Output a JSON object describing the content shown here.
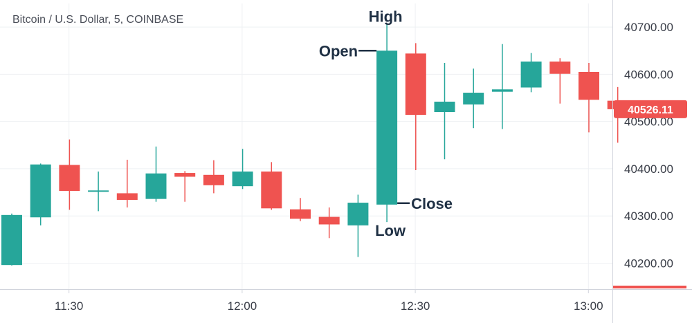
{
  "chart_data": {
    "type": "candlestick",
    "title": "Bitcoin / U.S. Dollar, 5, COINBASE",
    "xlabel": "",
    "ylabel": "",
    "ylim": [
      40145,
      40750
    ],
    "y_ticks": [
      40200,
      40300,
      40400,
      40500,
      40600,
      40700
    ],
    "y_tick_labels": [
      "40200.00",
      "40300.00",
      "40400.00",
      "40500.00",
      "40600.00",
      "40700.00"
    ],
    "x_tick_labels": [
      "11:30",
      "12:00",
      "12:30",
      "13:00"
    ],
    "x_tick_indices": [
      1,
      7,
      13,
      19
    ],
    "current_price": "40526.11",
    "colors": {
      "up": "#26a69a",
      "down": "#ef5350",
      "badge": "#ef5350"
    },
    "candles": [
      {
        "open": 40196,
        "high": 40305,
        "low": 40195,
        "close": 40302
      },
      {
        "open": 40297,
        "high": 40411,
        "low": 40280,
        "close": 40409
      },
      {
        "open": 40408,
        "high": 40462,
        "low": 40313,
        "close": 40353
      },
      {
        "open": 40352,
        "high": 40394,
        "low": 40310,
        "close": 40354
      },
      {
        "open": 40348,
        "high": 40419,
        "low": 40318,
        "close": 40334
      },
      {
        "open": 40336,
        "high": 40447,
        "low": 40330,
        "close": 40390
      },
      {
        "open": 40391,
        "high": 40395,
        "low": 40330,
        "close": 40383
      },
      {
        "open": 40387,
        "high": 40418,
        "low": 40348,
        "close": 40365
      },
      {
        "open": 40363,
        "high": 40442,
        "low": 40357,
        "close": 40394
      },
      {
        "open": 40394,
        "high": 40414,
        "low": 40313,
        "close": 40316
      },
      {
        "open": 40314,
        "high": 40338,
        "low": 40289,
        "close": 40294
      },
      {
        "open": 40298,
        "high": 40318,
        "low": 40253,
        "close": 40282
      },
      {
        "open": 40280,
        "high": 40345,
        "low": 40213,
        "close": 40328
      },
      {
        "open": 40324,
        "high": 40708,
        "low": 40287,
        "close": 40650
      },
      {
        "open": 40644,
        "high": 40666,
        "low": 40397,
        "close": 40514
      },
      {
        "open": 40520,
        "high": 40624,
        "low": 40420,
        "close": 40542
      },
      {
        "open": 40536,
        "high": 40612,
        "low": 40486,
        "close": 40561
      },
      {
        "open": 40563,
        "high": 40664,
        "low": 40484,
        "close": 40568
      },
      {
        "open": 40572,
        "high": 40645,
        "low": 40562,
        "close": 40627
      },
      {
        "open": 40627,
        "high": 40634,
        "low": 40538,
        "close": 40601
      },
      {
        "open": 40605,
        "high": 40624,
        "low": 40477,
        "close": 40546
      },
      {
        "open": 40544,
        "high": 40573,
        "low": 40455,
        "close": 40526
      }
    ],
    "annotations": {
      "high": "High",
      "open": "Open",
      "close": "Close",
      "low": "Low",
      "target_index": 13
    }
  }
}
